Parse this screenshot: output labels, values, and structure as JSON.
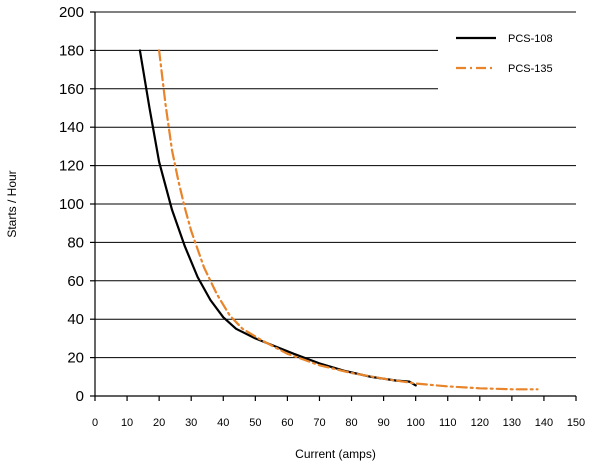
{
  "chart_data": {
    "type": "line",
    "xlabel": "Current (amps)",
    "ylabel": "Starts / Hour",
    "xlim": [
      0,
      150
    ],
    "ylim": [
      0,
      200
    ],
    "x_ticks": [
      0,
      10,
      20,
      30,
      40,
      50,
      60,
      70,
      80,
      90,
      100,
      110,
      120,
      130,
      140,
      150
    ],
    "y_ticks": [
      0,
      20,
      40,
      60,
      80,
      100,
      120,
      140,
      160,
      180,
      200
    ],
    "grid": "horizontal",
    "legend_position": "top-right",
    "series": [
      {
        "name": "PCS-108",
        "color": "#000000",
        "style": "solid",
        "points": [
          [
            14,
            180
          ],
          [
            17,
            150
          ],
          [
            20,
            122
          ],
          [
            24,
            97
          ],
          [
            28,
            78
          ],
          [
            32,
            62
          ],
          [
            36,
            50
          ],
          [
            40,
            41
          ],
          [
            44,
            35
          ],
          [
            50,
            30
          ],
          [
            56,
            26
          ],
          [
            62,
            22
          ],
          [
            70,
            17
          ],
          [
            78,
            13
          ],
          [
            86,
            10
          ],
          [
            94,
            8
          ],
          [
            98,
            7.5
          ],
          [
            100,
            5.5
          ]
        ]
      },
      {
        "name": "PCS-135",
        "color": "#E8842A",
        "style": "dash-dot",
        "points": [
          [
            20,
            180
          ],
          [
            22,
            152
          ],
          [
            24,
            128
          ],
          [
            26,
            112
          ],
          [
            28,
            98
          ],
          [
            30,
            86
          ],
          [
            34,
            67
          ],
          [
            38,
            53
          ],
          [
            42,
            42
          ],
          [
            46,
            35
          ],
          [
            52,
            29
          ],
          [
            60,
            22
          ],
          [
            70,
            16
          ],
          [
            80,
            12
          ],
          [
            90,
            9
          ],
          [
            100,
            6.5
          ],
          [
            110,
            5
          ],
          [
            120,
            4
          ],
          [
            130,
            3.5
          ],
          [
            138,
            3.5
          ]
        ]
      }
    ]
  }
}
